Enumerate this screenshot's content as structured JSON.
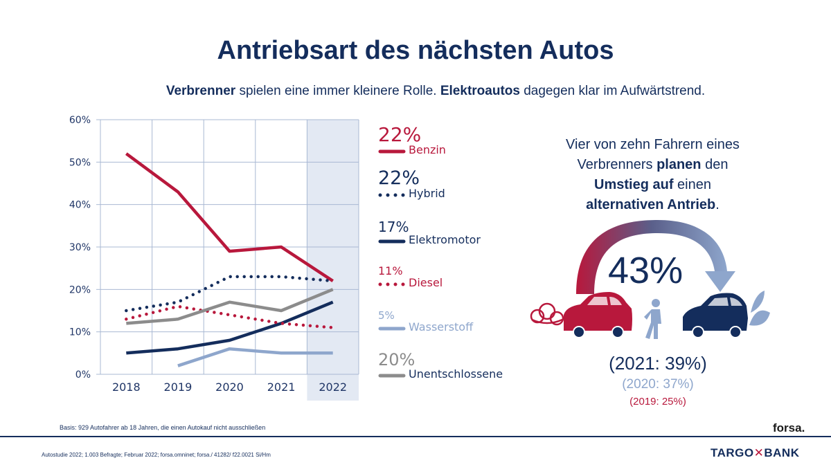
{
  "title": "Antriebsart des nächsten Autos",
  "subtitle": {
    "bold1": "Verbrenner",
    "text1": " spielen eine immer kleinere Rolle. ",
    "bold2": "Elektroautos",
    "text2": " dagegen klar im Aufwärtstrend."
  },
  "chart_data": {
    "type": "line",
    "categories": [
      "2018",
      "2019",
      "2020",
      "2021",
      "2022"
    ],
    "y_ticks": [
      "0%",
      "10%",
      "20%",
      "30%",
      "40%",
      "50%",
      "60%"
    ],
    "ylim": [
      0,
      60
    ],
    "highlight_category": "2022",
    "grid": true,
    "series": [
      {
        "name": "Benzin",
        "label": "22%",
        "values": [
          52,
          43,
          29,
          30,
          22
        ],
        "color": "#b8183c",
        "style": "solid"
      },
      {
        "name": "Hybrid",
        "label": "22%",
        "values": [
          15,
          17,
          23,
          23,
          22
        ],
        "color": "#142d5c",
        "style": "dotted"
      },
      {
        "name": "Elektromotor",
        "label": "17%",
        "values": [
          5,
          6,
          8,
          12,
          17
        ],
        "color": "#142d5c",
        "style": "solid"
      },
      {
        "name": "Diesel",
        "label": "11%",
        "values": [
          13,
          16,
          14,
          12,
          11
        ],
        "color": "#b8183c",
        "style": "dotted"
      },
      {
        "name": "Wasserstoff",
        "label": "5%",
        "values": [
          null,
          2,
          6,
          5,
          5
        ],
        "color": "#8ea6cc",
        "style": "solid"
      },
      {
        "name": "Unentschlossene",
        "label": "20%",
        "values": [
          12,
          13,
          17,
          15,
          20
        ],
        "color": "#8c8c8c",
        "style": "solid"
      }
    ]
  },
  "callout": {
    "line1": "Vier von zehn Fahrern eines",
    "line2a": "Verbrenners ",
    "line2b": "planen",
    "line2c": " den",
    "line3a": "Umstieg auf",
    "line3b": " einen",
    "line4a": "alternativen Antrieb",
    "line4b": "."
  },
  "big_pct": "43%",
  "pct_2021": "(2021: 39%)",
  "pct_2020": "(2020: 37%)",
  "pct_2019": "(2019: 25%)",
  "basis": "Basis: 929 Autofahrer ab 18 Jahren, die einen Autokauf nicht ausschließen",
  "forsa": "forsa.",
  "footnote": "Autostudie 2022; 1.003 Befragte; Februar 2022; forsa.omninet; forsa./ 41282/ f22.0021 Si/Hm",
  "brand": {
    "part1": "TARGO",
    "part2": "✕",
    "part3": "BANK"
  },
  "colors": {
    "navy": "#142d5c",
    "red": "#b8183c",
    "lightblue": "#8ea6cc",
    "gray": "#8c8c8c",
    "highlight": "#e3e9f3"
  }
}
